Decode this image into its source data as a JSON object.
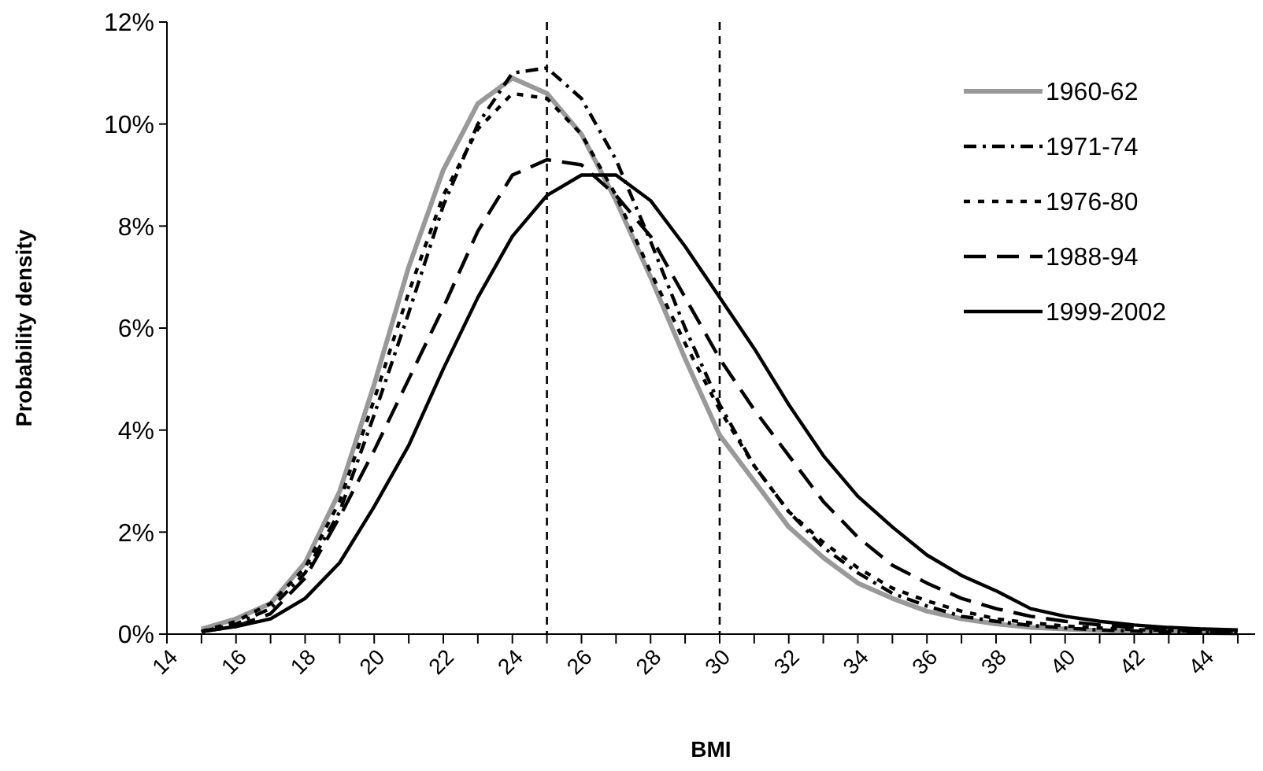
{
  "chart_data": {
    "type": "line",
    "xlabel": "BMI",
    "ylabel": "Probability density",
    "x": [
      15,
      16,
      17,
      18,
      19,
      20,
      21,
      22,
      23,
      24,
      25,
      26,
      27,
      28,
      29,
      30,
      31,
      32,
      33,
      34,
      35,
      36,
      37,
      38,
      39,
      40,
      41,
      42,
      43,
      44,
      45
    ],
    "series": [
      {
        "name": "1960-62",
        "color": "#999999",
        "line_style": "solid",
        "values": [
          0.1,
          0.3,
          0.6,
          1.4,
          2.8,
          4.9,
          7.2,
          9.1,
          10.4,
          10.9,
          10.6,
          9.8,
          8.5,
          7.0,
          5.4,
          3.9,
          3.0,
          2.1,
          1.5,
          1.0,
          0.7,
          0.45,
          0.3,
          0.2,
          0.13,
          0.1,
          0.07,
          0.05,
          0.04,
          0.03,
          0.02
        ]
      },
      {
        "name": "1971-74",
        "color": "#000000",
        "line_style": "dashdot",
        "values": [
          0.05,
          0.2,
          0.5,
          1.2,
          2.4,
          4.3,
          6.3,
          8.4,
          10.0,
          11.0,
          11.1,
          10.5,
          9.3,
          7.7,
          6.0,
          4.5,
          3.3,
          2.4,
          1.7,
          1.2,
          0.8,
          0.55,
          0.35,
          0.25,
          0.17,
          0.12,
          0.08,
          0.06,
          0.04,
          0.03,
          0.02
        ]
      },
      {
        "name": "1976-80",
        "color": "#000000",
        "line_style": "dotted",
        "values": [
          0.05,
          0.25,
          0.6,
          1.3,
          2.6,
          4.6,
          6.7,
          8.6,
          9.9,
          10.6,
          10.5,
          9.8,
          8.6,
          7.1,
          5.7,
          4.4,
          3.3,
          2.4,
          1.8,
          1.3,
          0.9,
          0.65,
          0.45,
          0.3,
          0.22,
          0.16,
          0.12,
          0.09,
          0.07,
          0.05,
          0.04
        ]
      },
      {
        "name": "1988-94",
        "color": "#000000",
        "line_style": "dashed",
        "values": [
          0.05,
          0.15,
          0.4,
          1.1,
          2.3,
          3.6,
          5.0,
          6.4,
          7.9,
          9.0,
          9.3,
          9.2,
          8.6,
          7.8,
          6.6,
          5.4,
          4.4,
          3.5,
          2.6,
          1.9,
          1.35,
          1.0,
          0.7,
          0.5,
          0.35,
          0.25,
          0.18,
          0.13,
          0.1,
          0.07,
          0.05
        ]
      },
      {
        "name": "1999-2002",
        "color": "#000000",
        "line_style": "solid",
        "values": [
          0.05,
          0.15,
          0.3,
          0.7,
          1.4,
          2.5,
          3.7,
          5.2,
          6.6,
          7.8,
          8.6,
          9.0,
          9.0,
          8.5,
          7.6,
          6.6,
          5.6,
          4.5,
          3.5,
          2.7,
          2.1,
          1.55,
          1.15,
          0.85,
          0.5,
          0.35,
          0.25,
          0.18,
          0.13,
          0.1,
          0.08
        ]
      }
    ],
    "xlim": [
      14,
      45.5
    ],
    "xticks": [
      14,
      {
        "value": 15,
        "label": null
      },
      16,
      {
        "value": 17,
        "label": null
      },
      18,
      {
        "value": 19,
        "label": null
      },
      20,
      {
        "value": 21,
        "label": null
      },
      22,
      {
        "value": 23,
        "label": null
      },
      24,
      {
        "value": 25,
        "label": null
      },
      26,
      {
        "value": 27,
        "label": null
      },
      28,
      {
        "value": 29,
        "label": null
      },
      30,
      {
        "value": 31,
        "label": null
      },
      32,
      {
        "value": 33,
        "label": null
      },
      34,
      {
        "value": 35,
        "label": null
      },
      36,
      {
        "value": 37,
        "label": null
      },
      38,
      {
        "value": 39,
        "label": null
      },
      40,
      {
        "value": 41,
        "label": null
      },
      42,
      {
        "value": 43,
        "label": null
      },
      44,
      {
        "value": 45,
        "label": null
      }
    ],
    "ylim": [
      0,
      12
    ],
    "yticks": [
      {
        "value": 0,
        "label": "0%"
      },
      {
        "value": 2,
        "label": "2%"
      },
      {
        "value": 4,
        "label": "4%"
      },
      {
        "value": 6,
        "label": "6%"
      },
      {
        "value": 8,
        "label": "8%"
      },
      {
        "value": 10,
        "label": "10%"
      },
      {
        "value": 12,
        "label": "12%"
      }
    ],
    "ref_lines": [
      {
        "axis": "x",
        "value": 25,
        "line_style": "dashed",
        "color": "#000000"
      },
      {
        "axis": "x",
        "value": 30,
        "line_style": "dashed",
        "color": "#000000"
      }
    ],
    "grid": false,
    "legend": "top right"
  }
}
